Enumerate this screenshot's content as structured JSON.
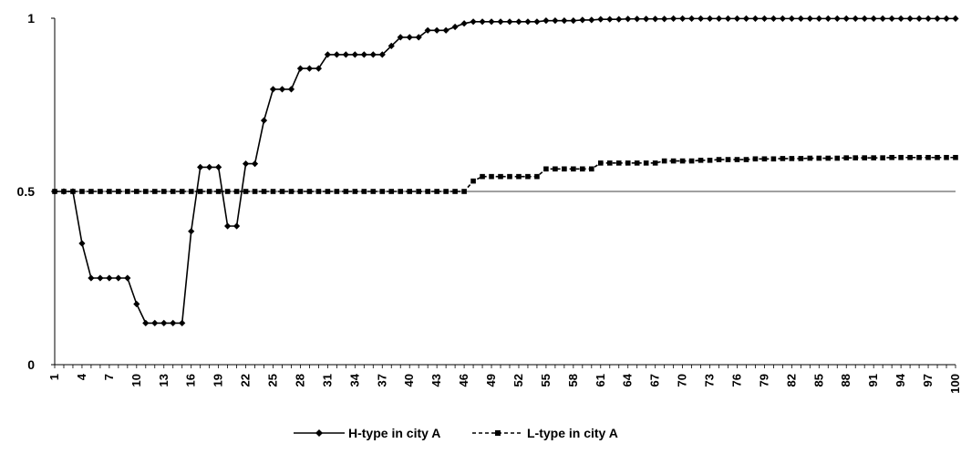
{
  "chart_data": {
    "type": "line",
    "x": [
      1,
      2,
      3,
      4,
      5,
      6,
      7,
      8,
      9,
      10,
      11,
      12,
      13,
      14,
      15,
      16,
      17,
      18,
      19,
      20,
      21,
      22,
      23,
      24,
      25,
      26,
      27,
      28,
      29,
      30,
      31,
      32,
      33,
      34,
      35,
      36,
      37,
      38,
      39,
      40,
      41,
      42,
      43,
      44,
      45,
      46,
      47,
      48,
      49,
      50,
      51,
      52,
      53,
      54,
      55,
      56,
      57,
      58,
      59,
      60,
      61,
      62,
      63,
      64,
      65,
      66,
      67,
      68,
      69,
      70,
      71,
      72,
      73,
      74,
      75,
      76,
      77,
      78,
      79,
      80,
      81,
      82,
      83,
      84,
      85,
      86,
      87,
      88,
      89,
      90,
      91,
      92,
      93,
      94,
      95,
      96,
      97,
      98,
      99,
      100
    ],
    "x_tick_labels": [
      "1",
      "4",
      "7",
      "10",
      "13",
      "16",
      "19",
      "22",
      "25",
      "28",
      "31",
      "34",
      "37",
      "40",
      "43",
      "46",
      "49",
      "52",
      "55",
      "58",
      "61",
      "64",
      "67",
      "70",
      "73",
      "76",
      "79",
      "82",
      "85",
      "88",
      "91",
      "94",
      "97",
      "100"
    ],
    "ylim": [
      0,
      1
    ],
    "y_ticks": [
      0,
      0.5,
      1
    ],
    "y_tick_labels": [
      "0",
      "0.5",
      "1"
    ],
    "reference_line": 0.5,
    "grid": false,
    "legend_position": "bottom",
    "series": [
      {
        "name": "H-type in city A",
        "marker": "diamond",
        "line_style": "solid",
        "color": "#000000",
        "values": [
          0.5,
          0.5,
          0.5,
          0.35,
          0.25,
          0.25,
          0.25,
          0.25,
          0.25,
          0.175,
          0.12,
          0.12,
          0.12,
          0.12,
          0.12,
          0.385,
          0.57,
          0.57,
          0.57,
          0.4,
          0.4,
          0.58,
          0.58,
          0.705,
          0.795,
          0.795,
          0.795,
          0.855,
          0.855,
          0.855,
          0.895,
          0.895,
          0.895,
          0.895,
          0.895,
          0.895,
          0.895,
          0.92,
          0.945,
          0.945,
          0.945,
          0.965,
          0.965,
          0.965,
          0.975,
          0.985,
          0.99,
          0.99,
          0.99,
          0.99,
          0.99,
          0.99,
          0.99,
          0.99,
          0.993,
          0.993,
          0.993,
          0.993,
          0.995,
          0.995,
          0.997,
          0.997,
          0.997,
          0.998,
          0.998,
          0.998,
          0.998,
          0.998,
          0.999,
          0.999,
          0.999,
          0.999,
          0.999,
          0.999,
          0.999,
          0.999,
          0.999,
          0.999,
          0.999,
          0.999,
          0.999,
          0.999,
          0.999,
          0.999,
          0.999,
          0.999,
          0.999,
          0.999,
          0.999,
          0.999,
          0.999,
          0.999,
          0.999,
          0.999,
          0.999,
          0.999,
          0.999,
          0.999,
          0.999,
          0.999
        ]
      },
      {
        "name": "L-type in city A",
        "marker": "square",
        "line_style": "dashed",
        "color": "#000000",
        "values": [
          0.5,
          0.5,
          0.5,
          0.5,
          0.5,
          0.5,
          0.5,
          0.5,
          0.5,
          0.5,
          0.5,
          0.5,
          0.5,
          0.5,
          0.5,
          0.5,
          0.5,
          0.5,
          0.5,
          0.5,
          0.5,
          0.5,
          0.5,
          0.5,
          0.5,
          0.5,
          0.5,
          0.5,
          0.5,
          0.5,
          0.5,
          0.5,
          0.5,
          0.5,
          0.5,
          0.5,
          0.5,
          0.5,
          0.5,
          0.5,
          0.5,
          0.5,
          0.5,
          0.5,
          0.5,
          0.5,
          0.53,
          0.543,
          0.543,
          0.543,
          0.543,
          0.543,
          0.543,
          0.543,
          0.565,
          0.565,
          0.565,
          0.565,
          0.565,
          0.565,
          0.582,
          0.582,
          0.582,
          0.582,
          0.582,
          0.582,
          0.582,
          0.588,
          0.588,
          0.588,
          0.588,
          0.59,
          0.59,
          0.592,
          0.592,
          0.592,
          0.592,
          0.594,
          0.594,
          0.594,
          0.595,
          0.595,
          0.595,
          0.596,
          0.596,
          0.596,
          0.596,
          0.597,
          0.597,
          0.597,
          0.597,
          0.597,
          0.598,
          0.598,
          0.598,
          0.598,
          0.598,
          0.598,
          0.598,
          0.598
        ]
      }
    ]
  }
}
